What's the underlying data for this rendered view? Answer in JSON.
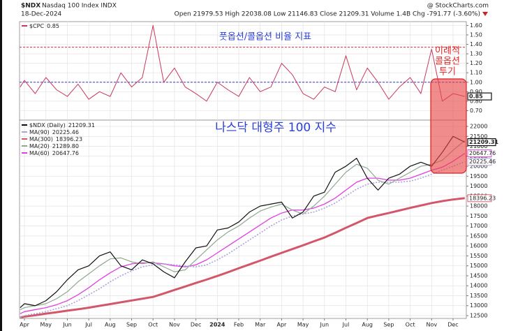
{
  "header": {
    "symbol": "$NDX",
    "name": "Nasdaq 100 Index INDX",
    "date": "18-Dec-2024",
    "quote": "Open 21979.53 High 22038.08 Low 21146.83 Close 21209.31 Volume 1.4B Chg -791.77 (-3.60%)",
    "source": "@ StockCharts.com"
  },
  "callout": [
    "이례적",
    "콜옵션",
    "투기"
  ],
  "chart_data": [
    {
      "type": "line",
      "annotation": "풋옵션/콜옵션 비율 지표",
      "x": [
        -0.2,
        0,
        0.5,
        1,
        1.5,
        2,
        2.5,
        3,
        3.5,
        4,
        4.5,
        5,
        5.5,
        6,
        6.5,
        7,
        7.5,
        8,
        8.5,
        9,
        9.5,
        10,
        10.5,
        11,
        11.5,
        12,
        12.5,
        13,
        13.5,
        14,
        14.5,
        15,
        15.5,
        16,
        16.5,
        17,
        17.5,
        18,
        18.5,
        19,
        19.5,
        20,
        20.55
      ],
      "xlim": [
        -0.23,
        20.62
      ],
      "ylim": [
        0.6,
        1.64
      ],
      "grid": true,
      "yticks": [
        {
          "value": 0.7,
          "label": "0.70"
        },
        {
          "value": 0.8,
          "label": "0.80"
        },
        {
          "value": 0.9,
          "label": "0.90"
        },
        {
          "value": 1.0,
          "label": "1.00"
        },
        {
          "value": 1.1,
          "label": "1.10"
        },
        {
          "value": 1.2,
          "label": "1.20"
        },
        {
          "value": 1.3,
          "label": "1.30"
        },
        {
          "value": 1.4,
          "label": "1.40"
        },
        {
          "value": 1.5,
          "label": "1.50"
        },
        {
          "value": 1.6,
          "label": "1.60"
        }
      ],
      "hlines": [
        {
          "value": 1.37,
          "color": "#e03030"
        },
        {
          "value": 1.0,
          "color": "#3535d0"
        }
      ],
      "series": [
        {
          "name": "$CPC",
          "color": "#c8385a",
          "price_box": true,
          "values": [
            0.95,
            1.02,
            0.88,
            1.05,
            0.92,
            0.85,
            0.98,
            0.82,
            0.9,
            0.85,
            1.1,
            0.95,
            1.05,
            1.6,
            1.0,
            1.15,
            0.95,
            0.88,
            0.8,
            1.0,
            0.92,
            0.85,
            1.05,
            0.9,
            0.95,
            1.2,
            1.08,
            0.88,
            0.82,
            0.95,
            0.9,
            1.28,
            0.92,
            1.15,
            1.0,
            0.82,
            0.95,
            1.05,
            0.88,
            1.35,
            0.8,
            0.88,
            0.85
          ]
        }
      ]
    },
    {
      "type": "line",
      "annotation": "나스닥 대형주 100 지수",
      "x": [
        -0.2,
        0,
        0.5,
        1,
        1.5,
        2,
        2.5,
        3,
        3.5,
        4,
        4.5,
        5,
        5.5,
        6,
        6.5,
        7,
        7.5,
        8,
        8.5,
        9,
        9.5,
        10,
        10.5,
        11,
        11.5,
        12,
        12.5,
        13,
        13.5,
        14,
        14.5,
        15,
        15.5,
        16,
        16.5,
        17,
        17.5,
        18,
        18.5,
        19,
        19.5,
        20,
        20.55
      ],
      "xlim": [
        -0.23,
        20.62
      ],
      "ylim": [
        12360,
        22280
      ],
      "grid": true,
      "xticks": [
        {
          "value": 0,
          "label": "Apr"
        },
        {
          "value": 1,
          "label": "May"
        },
        {
          "value": 2,
          "label": "Jun"
        },
        {
          "value": 3,
          "label": "Jul"
        },
        {
          "value": 4,
          "label": "Aug"
        },
        {
          "value": 5,
          "label": "Sep"
        },
        {
          "value": 6,
          "label": "Oct"
        },
        {
          "value": 7,
          "label": "Nov"
        },
        {
          "value": 8,
          "label": "Dec"
        },
        {
          "value": 9,
          "label": "2024"
        },
        {
          "value": 10,
          "label": "Feb"
        },
        {
          "value": 11,
          "label": "Mar"
        },
        {
          "value": 12,
          "label": "Apr"
        },
        {
          "value": 13,
          "label": "May"
        },
        {
          "value": 14,
          "label": "Jun"
        },
        {
          "value": 15,
          "label": "Jul"
        },
        {
          "value": 16,
          "label": "Aug"
        },
        {
          "value": 17,
          "label": "Sep"
        },
        {
          "value": 18,
          "label": "Oct"
        },
        {
          "value": 19,
          "label": "Nov"
        },
        {
          "value": 20,
          "label": "Dec"
        }
      ],
      "yticks": [
        12500,
        13000,
        13500,
        14000,
        14500,
        15000,
        15500,
        16000,
        16500,
        17000,
        17500,
        18000,
        18500,
        19000,
        19500,
        20000,
        20500,
        21000,
        21500,
        22000
      ],
      "series": [
        {
          "name": "$NDX (Daily)",
          "color": "#111111",
          "width": 1.2,
          "price_box": true,
          "values": [
            12900,
            13100,
            13000,
            13250,
            13700,
            14300,
            14800,
            15000,
            15500,
            15700,
            15000,
            14800,
            15300,
            15100,
            14700,
            14400,
            15200,
            15900,
            16000,
            16800,
            16900,
            17200,
            17700,
            18000,
            18100,
            18200,
            17400,
            17700,
            18500,
            18700,
            19700,
            20000,
            20400,
            19400,
            18800,
            19400,
            19600,
            20000,
            20200,
            20000,
            20700,
            21500,
            21209.31
          ]
        },
        {
          "name": "MA(90)",
          "color": "#a8a4d8",
          "dash": "2 2",
          "width": 1.6,
          "price_box": true,
          "values": [
            12400,
            12500,
            12600,
            12700,
            12850,
            13000,
            13250,
            13550,
            13850,
            14200,
            14500,
            14750,
            14950,
            15050,
            15100,
            15050,
            15000,
            14950,
            15050,
            15300,
            15600,
            15950,
            16300,
            16650,
            17000,
            17300,
            17500,
            17600,
            17700,
            17900,
            18150,
            18500,
            18850,
            19100,
            19200,
            19200,
            19200,
            19250,
            19400,
            19600,
            19800,
            20000,
            20225.46
          ]
        },
        {
          "name": "MA(300)",
          "color": "#d4566a",
          "width": 3,
          "price_box": true,
          "values": [
            12400,
            12450,
            12520,
            12600,
            12670,
            12750,
            12820,
            12900,
            12990,
            13080,
            13170,
            13260,
            13350,
            13440,
            13610,
            13790,
            13960,
            14140,
            14310,
            14490,
            14680,
            14880,
            15070,
            15260,
            15460,
            15650,
            15840,
            16030,
            16230,
            16420,
            16660,
            16910,
            17150,
            17400,
            17530,
            17650,
            17780,
            17910,
            18030,
            18150,
            18250,
            18330,
            18396.23
          ]
        },
        {
          "name": "MA(20)",
          "color": "#8fa88f",
          "width": 1.2,
          "price_box": false,
          "values": [
            12800,
            12900,
            13000,
            13100,
            13350,
            13700,
            14200,
            14600,
            15000,
            15350,
            15400,
            15200,
            15100,
            15200,
            14950,
            14700,
            14800,
            15300,
            15800,
            16300,
            16700,
            17000,
            17400,
            17750,
            17950,
            18100,
            17800,
            17600,
            18000,
            18500,
            19100,
            19700,
            20100,
            19900,
            19300,
            19100,
            19400,
            19700,
            20000,
            20100,
            20300,
            20800,
            21289.8
          ],
          "value_labels": [
            null,
            null,
            null,
            null,
            null,
            null,
            null,
            null,
            null,
            null,
            null,
            null,
            null,
            null,
            null,
            null,
            null,
            null,
            null,
            null,
            null,
            null,
            null,
            null,
            null,
            null,
            null,
            null,
            null,
            null,
            null,
            null,
            null,
            null,
            null,
            null,
            null,
            null,
            null,
            null,
            null,
            null,
            "21289.80"
          ]
        },
        {
          "name": "MA(60)",
          "color": "#e040e0",
          "width": 1.3,
          "price_box": true,
          "values": [
            12600,
            12700,
            12800,
            12900,
            13050,
            13250,
            13550,
            13900,
            14300,
            14650,
            14950,
            15100,
            15150,
            15150,
            15100,
            15000,
            14950,
            15050,
            15300,
            15650,
            16000,
            16350,
            16700,
            17050,
            17400,
            17650,
            17800,
            17800,
            17900,
            18100,
            18400,
            18800,
            19200,
            19400,
            19400,
            19300,
            19300,
            19400,
            19600,
            19800,
            19950,
            20250,
            20647.76
          ]
        }
      ]
    }
  ]
}
